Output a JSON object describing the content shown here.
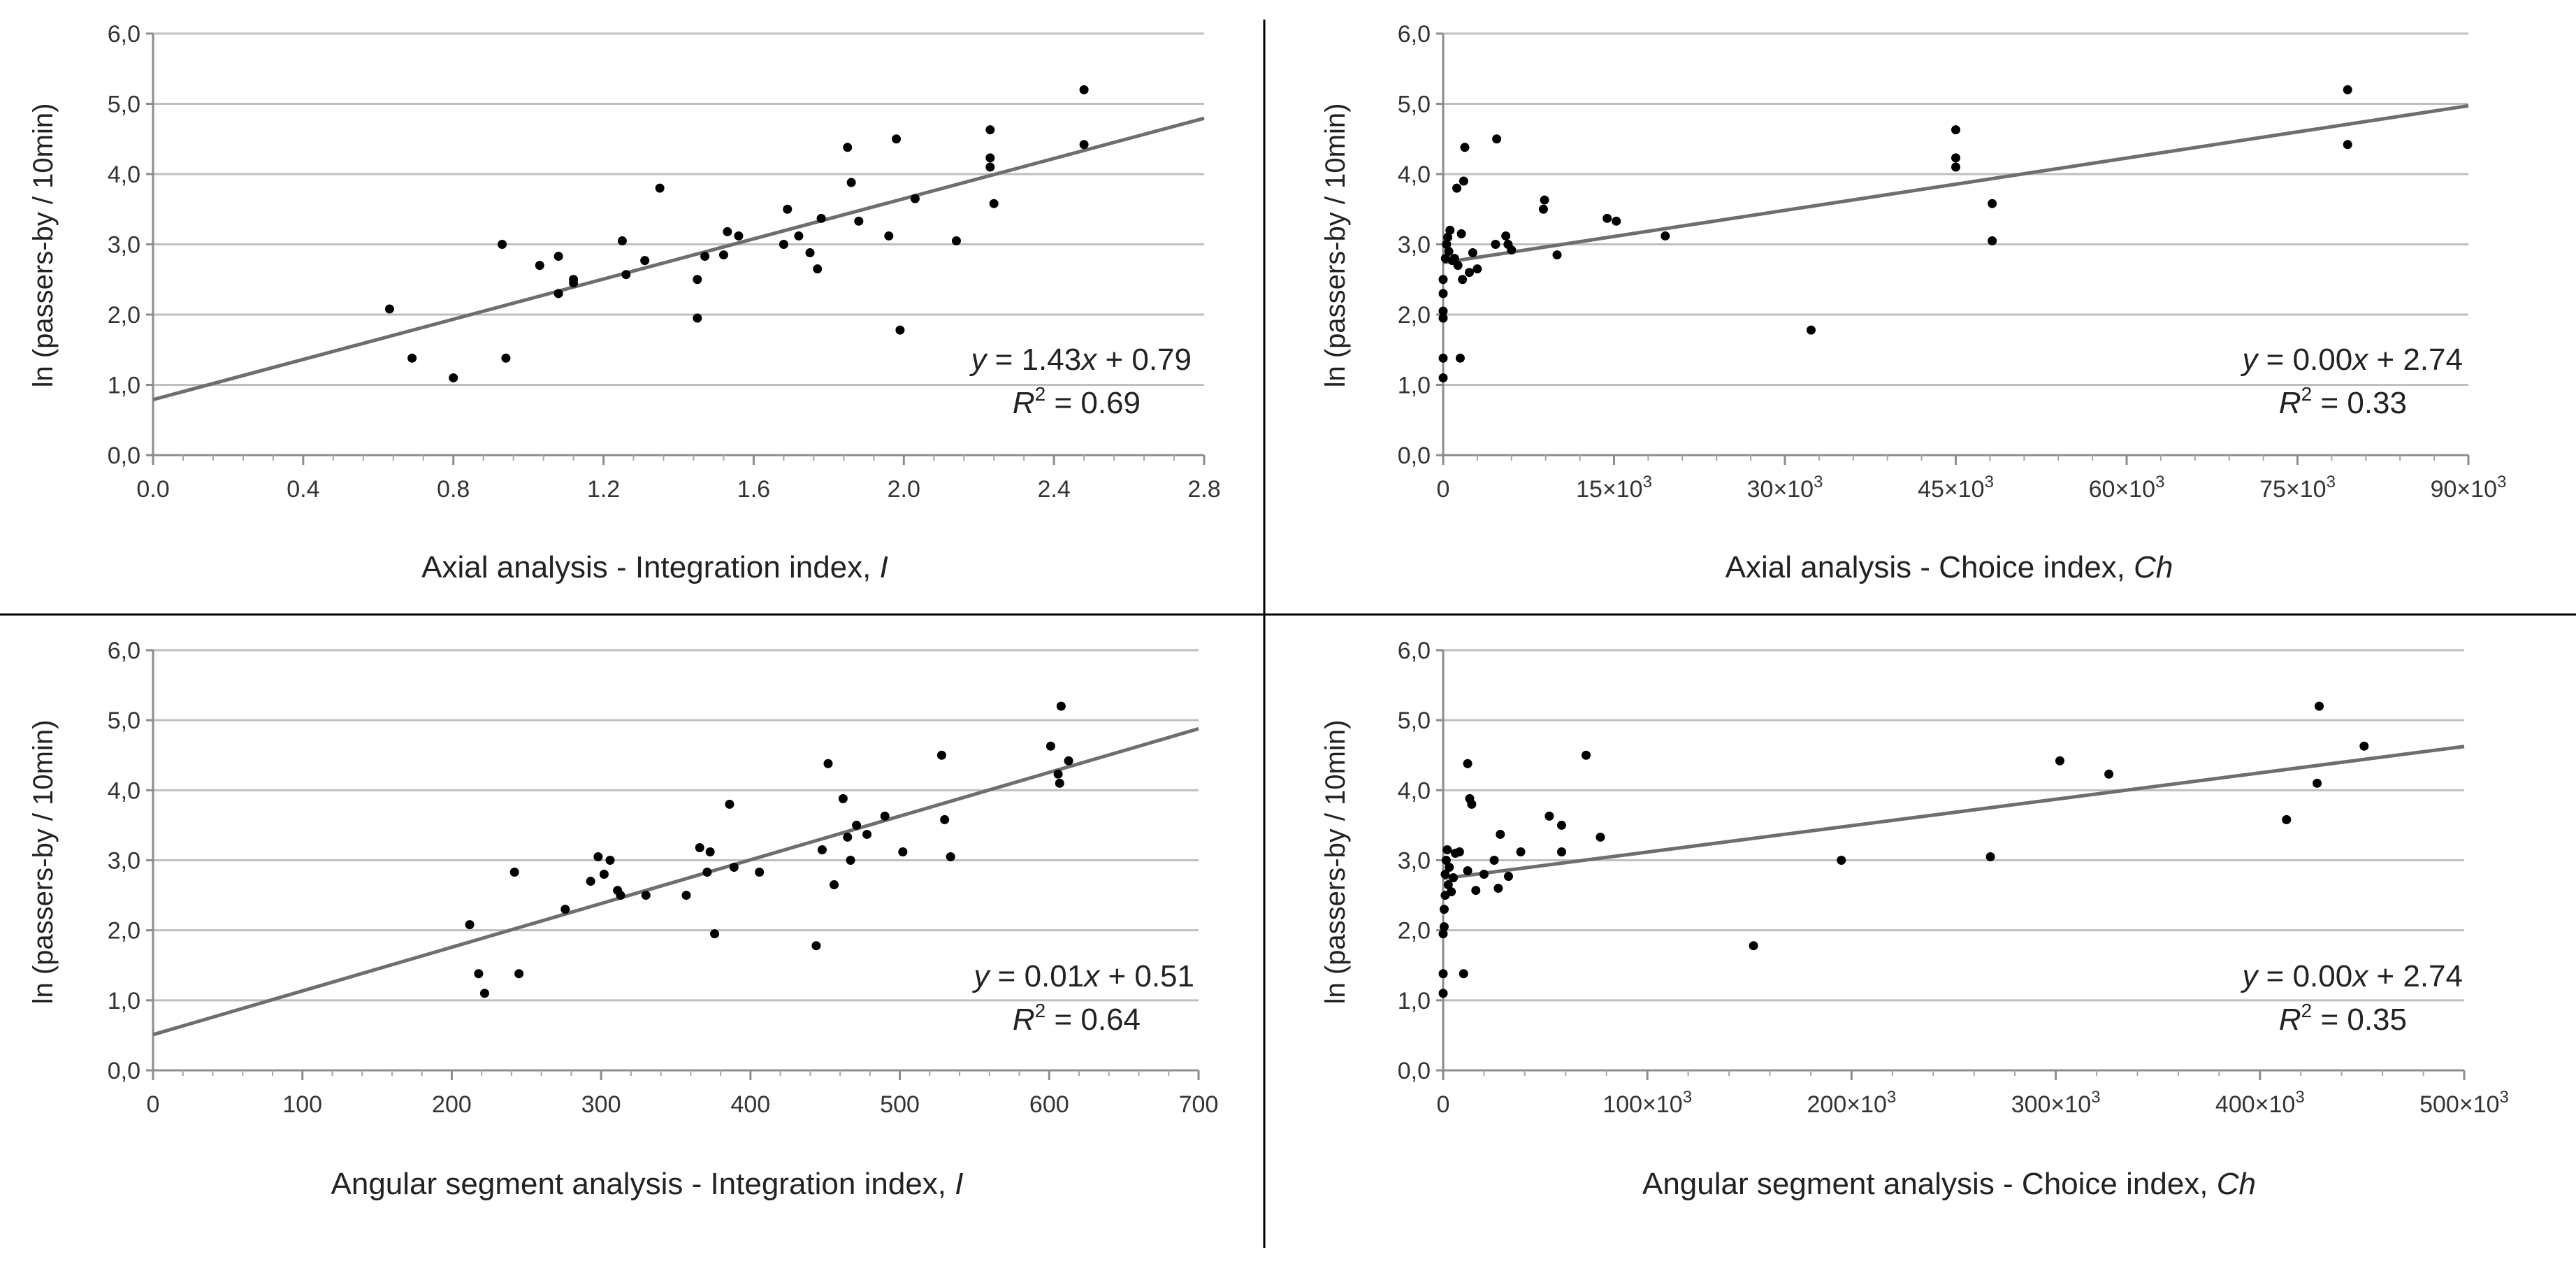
{
  "figure": {
    "panels": [
      "p1",
      "p2",
      "p3",
      "p4"
    ]
  },
  "chart_data": [
    {
      "type": "scatter",
      "id": "p1",
      "ylabel": "ln (passers-by / 10min)",
      "xlabel_main": "Axial analysis - Integration index, ",
      "xlabel_var": "I",
      "xlim": [
        0,
        2.8
      ],
      "ylim": [
        0,
        6
      ],
      "xticks": [
        0,
        0.4,
        0.8,
        1.2,
        1.6,
        2.0,
        2.4,
        2.8
      ],
      "xtick_labels": [
        "0.0",
        "0.4",
        "0.8",
        "1.2",
        "1.6",
        "2.0",
        "2.4",
        "2.8"
      ],
      "yticks": [
        0,
        1,
        2,
        3,
        4,
        5,
        6
      ],
      "ytick_labels": [
        "0,0",
        "1,0",
        "2,0",
        "3,0",
        "4,0",
        "5,0",
        "6,0"
      ],
      "trend": {
        "slope": 1.43,
        "intercept": 0.79
      },
      "equation": {
        "lhs": "y",
        "mid": " = 1.43",
        "var": "x",
        "rhs": " + 0.79"
      },
      "r2": {
        "base": "R",
        "sup": "2",
        "value": " = 0.69"
      },
      "points": [
        [
          0.63,
          2.08
        ],
        [
          0.69,
          1.38
        ],
        [
          0.8,
          1.1
        ],
        [
          0.93,
          3.0
        ],
        [
          0.94,
          1.38
        ],
        [
          1.03,
          2.7
        ],
        [
          1.08,
          2.83
        ],
        [
          1.08,
          2.3
        ],
        [
          1.12,
          2.5
        ],
        [
          1.12,
          2.45
        ],
        [
          1.25,
          3.05
        ],
        [
          1.26,
          2.57
        ],
        [
          1.31,
          2.77
        ],
        [
          1.35,
          3.8
        ],
        [
          1.45,
          2.5
        ],
        [
          1.45,
          1.95
        ],
        [
          1.47,
          2.83
        ],
        [
          1.52,
          2.85
        ],
        [
          1.53,
          3.18
        ],
        [
          1.56,
          3.12
        ],
        [
          1.68,
          3.0
        ],
        [
          1.69,
          3.5
        ],
        [
          1.72,
          3.12
        ],
        [
          1.75,
          2.88
        ],
        [
          1.77,
          2.65
        ],
        [
          1.78,
          3.37
        ],
        [
          1.85,
          4.38
        ],
        [
          1.86,
          3.88
        ],
        [
          1.88,
          3.33
        ],
        [
          1.96,
          3.12
        ],
        [
          1.98,
          4.5
        ],
        [
          1.99,
          1.78
        ],
        [
          2.03,
          3.65
        ],
        [
          2.14,
          3.05
        ],
        [
          2.23,
          4.63
        ],
        [
          2.23,
          4.23
        ],
        [
          2.23,
          4.1
        ],
        [
          2.24,
          3.58
        ],
        [
          2.48,
          5.2
        ],
        [
          2.48,
          4.42
        ]
      ]
    },
    {
      "type": "scatter",
      "id": "p2",
      "ylabel": "ln (passers-by / 10min)",
      "xlabel_main": "Axial analysis - Choice index, ",
      "xlabel_var": "Ch",
      "xlim": [
        0,
        90000
      ],
      "ylim": [
        0,
        6
      ],
      "xticks": [
        0,
        15000,
        30000,
        45000,
        60000,
        75000,
        90000
      ],
      "xtick_labels": [
        "0",
        "15×10",
        "30×10",
        "45×10",
        "60×10",
        "75×10",
        "90×10"
      ],
      "xtick_exp": "3",
      "yticks": [
        0,
        1,
        2,
        3,
        4,
        5,
        6
      ],
      "ytick_labels": [
        "0,0",
        "1,0",
        "2,0",
        "3,0",
        "4,0",
        "5,0",
        "6,0"
      ],
      "trend": {
        "slope": 2.48e-05,
        "intercept": 2.74
      },
      "equation": {
        "lhs": "y",
        "mid": " = 0.00",
        "var": "x",
        "rhs": " + 2.74"
      },
      "r2": {
        "base": "R",
        "sup": "2",
        "value": " = 0.33"
      },
      "points": [
        [
          0,
          1.1
        ],
        [
          0,
          1.38
        ],
        [
          0,
          1.95
        ],
        [
          0,
          2.05
        ],
        [
          0,
          2.3
        ],
        [
          0,
          2.5
        ],
        [
          200,
          2.8
        ],
        [
          300,
          3.0
        ],
        [
          400,
          3.1
        ],
        [
          500,
          2.9
        ],
        [
          600,
          3.2
        ],
        [
          800,
          2.77
        ],
        [
          1000,
          2.8
        ],
        [
          1200,
          3.8
        ],
        [
          1300,
          2.7
        ],
        [
          1500,
          1.38
        ],
        [
          1600,
          3.15
        ],
        [
          1700,
          2.5
        ],
        [
          1800,
          3.9
        ],
        [
          1900,
          4.38
        ],
        [
          2300,
          2.6
        ],
        [
          2600,
          2.88
        ],
        [
          3000,
          2.65
        ],
        [
          4600,
          3.0
        ],
        [
          4700,
          4.5
        ],
        [
          5500,
          3.12
        ],
        [
          5700,
          3.0
        ],
        [
          6000,
          2.92
        ],
        [
          8800,
          3.5
        ],
        [
          8900,
          3.63
        ],
        [
          10000,
          2.85
        ],
        [
          14400,
          3.37
        ],
        [
          15200,
          3.33
        ],
        [
          19500,
          3.12
        ],
        [
          32300,
          1.78
        ],
        [
          45000,
          4.63
        ],
        [
          45000,
          4.23
        ],
        [
          45000,
          4.1
        ],
        [
          48200,
          3.58
        ],
        [
          48200,
          3.05
        ],
        [
          79400,
          5.2
        ],
        [
          79400,
          4.42
        ]
      ]
    },
    {
      "type": "scatter",
      "id": "p3",
      "ylabel": "ln (passers-by / 10min)",
      "xlabel_main": "Angular segment analysis - Integration index, ",
      "xlabel_var": "I",
      "xlim": [
        0,
        700
      ],
      "ylim": [
        0,
        6
      ],
      "xticks": [
        0,
        100,
        200,
        300,
        400,
        500,
        600,
        700
      ],
      "xtick_labels": [
        "0",
        "100",
        "200",
        "300",
        "400",
        "500",
        "600",
        "700"
      ],
      "yticks": [
        0,
        1,
        2,
        3,
        4,
        5,
        6
      ],
      "ytick_labels": [
        "0,0",
        "1,0",
        "2,0",
        "3,0",
        "4,0",
        "5,0",
        "6,0"
      ],
      "trend": {
        "slope": 0.00624,
        "intercept": 0.51
      },
      "equation": {
        "lhs": "y",
        "mid": " = 0.01",
        "var": "x",
        "rhs": " + 0.51"
      },
      "r2": {
        "base": "R",
        "sup": "2",
        "value": " = 0.64"
      },
      "points": [
        [
          212,
          2.08
        ],
        [
          218,
          1.38
        ],
        [
          222,
          1.1
        ],
        [
          242,
          2.83
        ],
        [
          245,
          1.38
        ],
        [
          276,
          2.3
        ],
        [
          293,
          2.7
        ],
        [
          298,
          3.05
        ],
        [
          302,
          2.8
        ],
        [
          306,
          3.0
        ],
        [
          311,
          2.57
        ],
        [
          313,
          2.5
        ],
        [
          330,
          2.5
        ],
        [
          357,
          2.5
        ],
        [
          366,
          3.18
        ],
        [
          371,
          2.83
        ],
        [
          373,
          3.12
        ],
        [
          376,
          1.95
        ],
        [
          386,
          3.8
        ],
        [
          389,
          2.9
        ],
        [
          406,
          2.83
        ],
        [
          444,
          1.78
        ],
        [
          448,
          3.15
        ],
        [
          452,
          4.38
        ],
        [
          456,
          2.65
        ],
        [
          462,
          3.88
        ],
        [
          465,
          3.33
        ],
        [
          467,
          3.0
        ],
        [
          471,
          3.5
        ],
        [
          478,
          3.37
        ],
        [
          490,
          3.63
        ],
        [
          502,
          3.12
        ],
        [
          528,
          4.5
        ],
        [
          530,
          3.58
        ],
        [
          534,
          3.05
        ],
        [
          601,
          4.63
        ],
        [
          606,
          4.23
        ],
        [
          607,
          4.1
        ],
        [
          608,
          5.2
        ],
        [
          613,
          4.42
        ]
      ]
    },
    {
      "type": "scatter",
      "id": "p4",
      "ylabel": "ln (passers-by / 10min)",
      "xlabel_main": "Angular segment analysis - Choice index, ",
      "xlabel_var": "Ch",
      "xlim": [
        0,
        500000
      ],
      "ylim": [
        0,
        6
      ],
      "xticks": [
        0,
        100000,
        200000,
        300000,
        400000,
        500000
      ],
      "xtick_labels": [
        "0",
        "100×10",
        "200×10",
        "300×10",
        "400×10",
        "500×10"
      ],
      "xtick_exp": "3",
      "yticks": [
        0,
        1,
        2,
        3,
        4,
        5,
        6
      ],
      "ytick_labels": [
        "0,0",
        "1,0",
        "2,0",
        "3,0",
        "4,0",
        "5,0",
        "6,0"
      ],
      "trend": {
        "slope": 3.77e-06,
        "intercept": 2.74
      },
      "equation": {
        "lhs": "y",
        "mid": " = 0.00",
        "var": "x",
        "rhs": " + 2.74"
      },
      "r2": {
        "base": "R",
        "sup": "2",
        "value": " = 0.35"
      },
      "points": [
        [
          0,
          1.1
        ],
        [
          0,
          1.38
        ],
        [
          0,
          1.95
        ],
        [
          500,
          2.05
        ],
        [
          500,
          2.3
        ],
        [
          1000,
          2.5
        ],
        [
          1000,
          2.8
        ],
        [
          1500,
          3.0
        ],
        [
          2000,
          3.15
        ],
        [
          2500,
          2.65
        ],
        [
          3000,
          2.9
        ],
        [
          4000,
          2.55
        ],
        [
          5000,
          2.75
        ],
        [
          6000,
          3.1
        ],
        [
          8000,
          3.12
        ],
        [
          10000,
          1.38
        ],
        [
          12000,
          2.85
        ],
        [
          12000,
          4.38
        ],
        [
          13000,
          3.88
        ],
        [
          14000,
          3.8
        ],
        [
          16000,
          2.57
        ],
        [
          20000,
          2.8
        ],
        [
          25000,
          3.0
        ],
        [
          27000,
          2.6
        ],
        [
          28000,
          3.37
        ],
        [
          32000,
          2.77
        ],
        [
          38000,
          3.12
        ],
        [
          52000,
          3.63
        ],
        [
          58000,
          3.12
        ],
        [
          58000,
          3.5
        ],
        [
          70000,
          4.5
        ],
        [
          77000,
          3.33
        ],
        [
          152000,
          1.78
        ],
        [
          195000,
          3.0
        ],
        [
          268000,
          3.05
        ],
        [
          302000,
          4.42
        ],
        [
          326000,
          4.23
        ],
        [
          413000,
          3.58
        ],
        [
          428000,
          4.1
        ],
        [
          429000,
          5.2
        ],
        [
          451000,
          4.63
        ]
      ]
    }
  ]
}
